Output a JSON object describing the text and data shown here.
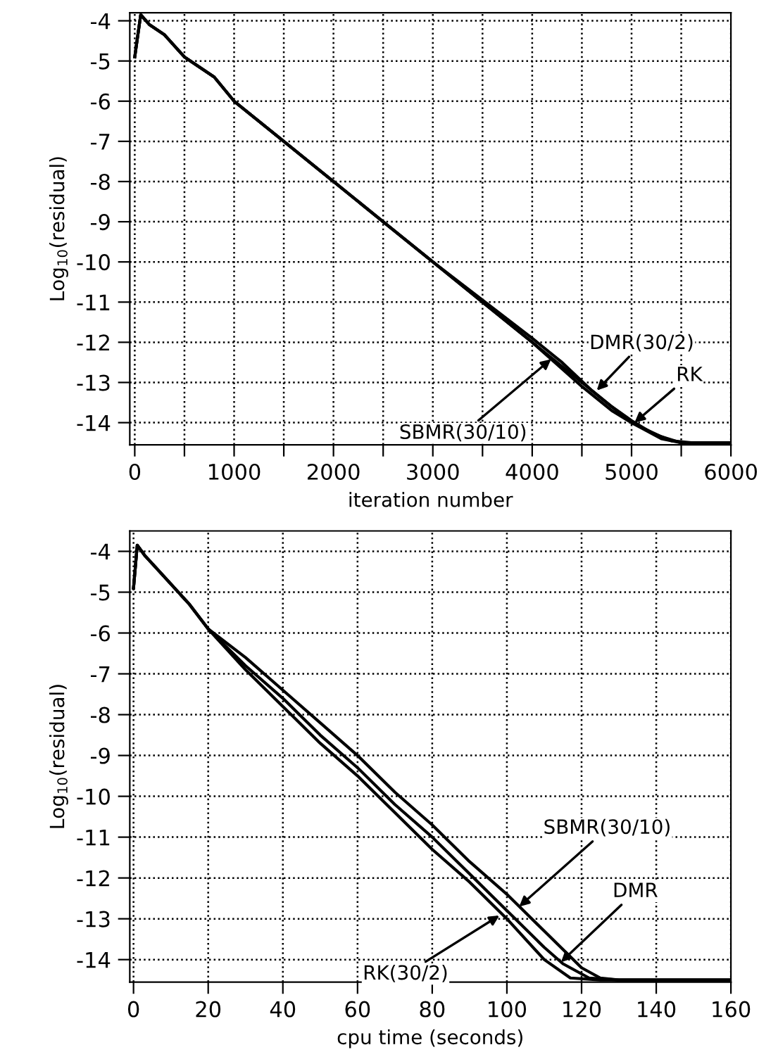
{
  "chart_data": [
    {
      "type": "line",
      "xlabel": "iteration number",
      "ylabel": "Log$_{10}$(residual)",
      "xlim": [
        -50,
        6000
      ],
      "ylim": [
        -14.55,
        -3.8
      ],
      "xticks": [
        0,
        {
          "value": 500,
          "label": null
        },
        1000,
        {
          "value": 1500,
          "label": null
        },
        2000,
        {
          "value": 2500,
          "label": null
        },
        3000,
        {
          "value": 3500,
          "label": null
        },
        4000,
        {
          "value": 4500,
          "label": null
        },
        5000,
        {
          "value": 5500,
          "label": null
        },
        6000
      ],
      "yticks": [
        -4,
        -5,
        -6,
        -7,
        -8,
        -9,
        -10,
        -11,
        -12,
        -13,
        -14
      ],
      "grid": true,
      "line_style": "solid",
      "series": [
        {
          "color": "#000000",
          "x": [
            0,
            60,
            150,
            300,
            500,
            800,
            1000,
            1500,
            2000,
            2500,
            3000,
            3500,
            4000,
            4500,
            4800,
            5000,
            5300,
            5500,
            6000
          ],
          "values": [
            -4.9,
            -3.85,
            -4.1,
            -4.35,
            -4.9,
            -5.4,
            -6.0,
            -7.0,
            -8.0,
            -9.0,
            -10.0,
            -11.0,
            -12.0,
            -13.1,
            -13.7,
            -14.0,
            -14.4,
            -14.5,
            -14.5
          ]
        },
        {
          "color": "#000000",
          "x": [
            0,
            60,
            150,
            300,
            500,
            800,
            1000,
            1500,
            2000,
            2500,
            3000,
            3500,
            4000,
            4300,
            4600,
            4800,
            5000,
            5300,
            5500,
            6000
          ],
          "values": [
            -4.9,
            -3.85,
            -4.1,
            -4.35,
            -4.9,
            -5.4,
            -6.0,
            -7.0,
            -8.0,
            -9.0,
            -10.0,
            -10.95,
            -11.9,
            -12.5,
            -13.2,
            -13.6,
            -14.0,
            -14.35,
            -14.5,
            -14.5
          ]
        },
        {
          "color": "#000000",
          "x": [
            0,
            60,
            150,
            300,
            500,
            800,
            1000,
            1500,
            2000,
            2500,
            3000,
            3500,
            4000,
            4500,
            4800,
            5000,
            5200,
            5400,
            5600,
            6000
          ],
          "values": [
            -4.9,
            -3.85,
            -4.1,
            -4.35,
            -4.9,
            -5.4,
            -6.0,
            -7.0,
            -8.0,
            -9.0,
            -10.0,
            -11.0,
            -12.0,
            -13.0,
            -13.6,
            -13.95,
            -14.25,
            -14.45,
            -14.5,
            -14.5
          ]
        }
      ],
      "annotations": [
        {
          "text": "SBMR(30/10)",
          "x": 4190,
          "y": -12.42
        },
        {
          "text": "DMR(30/2)",
          "x": 4650,
          "y": -13.2
        },
        {
          "text": "RK",
          "x": 5030,
          "y": -14.0
        }
      ]
    },
    {
      "type": "line",
      "xlabel": "cpu time (seconds)",
      "ylabel": "Log$_{10}$(residual)",
      "xlim": [
        -1,
        160
      ],
      "ylim": [
        -14.55,
        -3.5
      ],
      "xticks": [
        0,
        20,
        40,
        60,
        80,
        100,
        120,
        140,
        160
      ],
      "yticks": [
        -4,
        -5,
        -6,
        -7,
        -8,
        -9,
        -10,
        -11,
        -12,
        -13,
        -14
      ],
      "grid": true,
      "line_style": "solid",
      "series": [
        {
          "color": "#000000",
          "x": [
            0,
            1,
            3,
            5,
            10,
            15,
            20,
            30,
            40,
            50,
            60,
            70,
            80,
            90,
            100,
            110,
            120,
            125,
            130,
            160
          ],
          "values": [
            -4.9,
            -3.85,
            -4.1,
            -4.3,
            -4.8,
            -5.3,
            -5.9,
            -6.6,
            -7.4,
            -8.2,
            -9.0,
            -9.9,
            -10.7,
            -11.6,
            -12.4,
            -13.3,
            -14.2,
            -14.45,
            -14.5,
            -14.5
          ]
        },
        {
          "color": "#000000",
          "x": [
            0,
            1,
            3,
            5,
            10,
            15,
            20,
            30,
            40,
            50,
            60,
            70,
            80,
            90,
            100,
            110,
            115,
            122,
            130,
            160
          ],
          "values": [
            -4.9,
            -3.85,
            -4.1,
            -4.3,
            -4.8,
            -5.3,
            -5.9,
            -6.8,
            -7.6,
            -8.5,
            -9.3,
            -10.2,
            -11.0,
            -11.9,
            -12.8,
            -13.7,
            -14.1,
            -14.45,
            -14.5,
            -14.5
          ]
        },
        {
          "color": "#000000",
          "x": [
            0,
            1,
            3,
            5,
            10,
            15,
            20,
            30,
            40,
            50,
            60,
            70,
            80,
            90,
            100,
            110,
            117,
            125,
            160
          ],
          "values": [
            -4.9,
            -3.85,
            -4.1,
            -4.3,
            -4.8,
            -5.3,
            -5.9,
            -6.9,
            -7.8,
            -8.7,
            -9.5,
            -10.4,
            -11.3,
            -12.1,
            -13.0,
            -14.0,
            -14.45,
            -14.5,
            -14.5
          ]
        }
      ],
      "annotations": [
        {
          "text": "SBMR(30/10)",
          "x": 103.3,
          "y": -12.7
        },
        {
          "text": "DMR",
          "x": 114.5,
          "y": -14.06
        },
        {
          "text": "RK(30/2)",
          "x": 98,
          "y": -12.92
        }
      ]
    }
  ]
}
